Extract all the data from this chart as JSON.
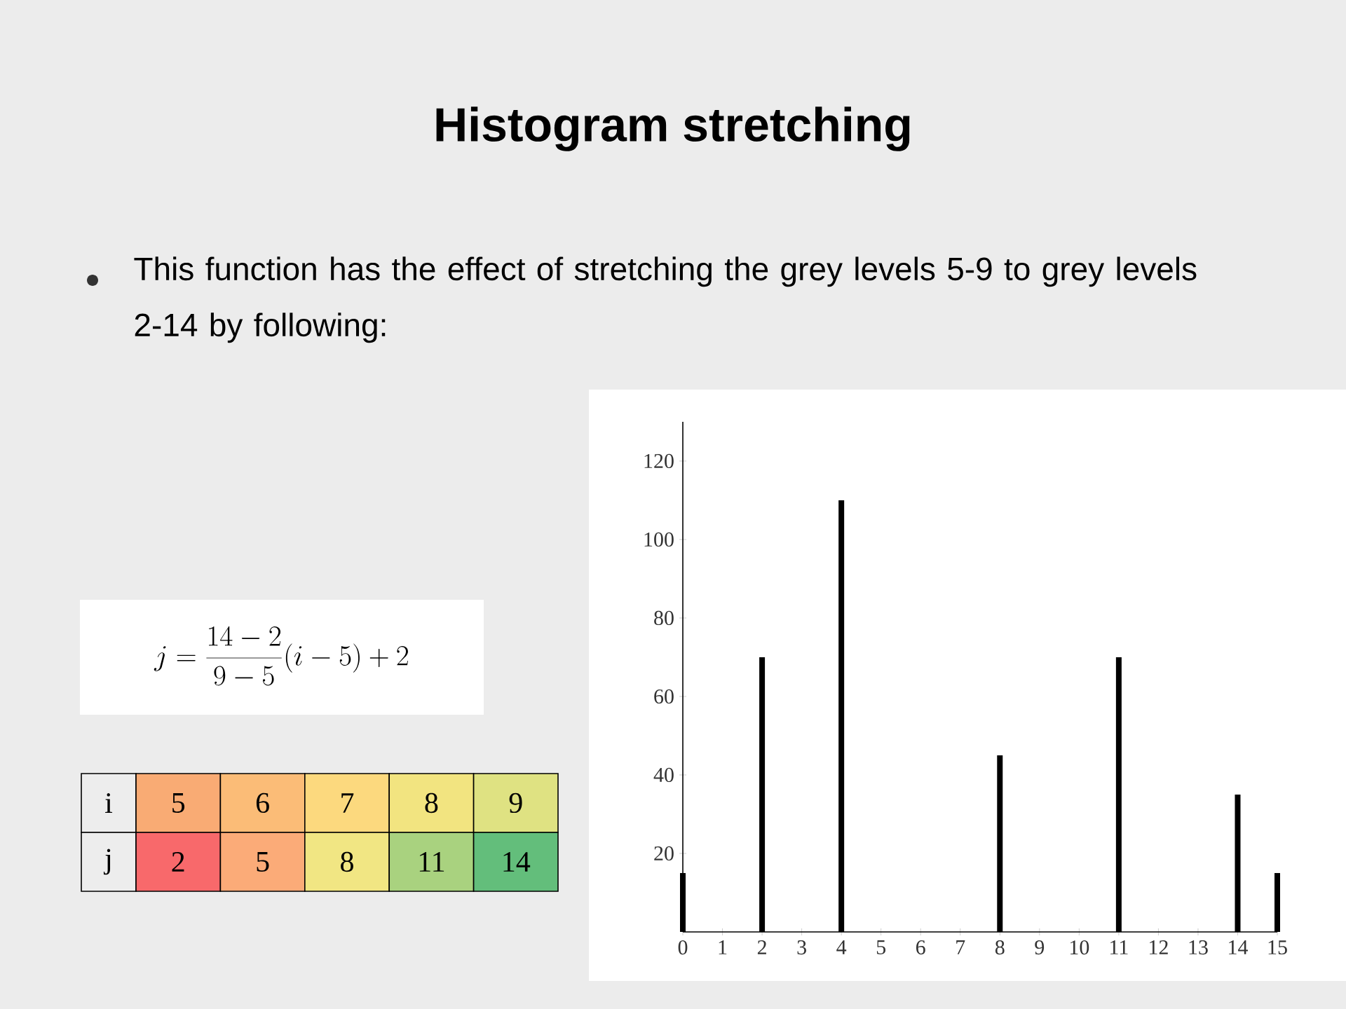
{
  "chart_data": {
    "type": "bar",
    "title": "Histogram stretching",
    "subtitle": "This function has the effect of stretching the grey levels 5-9 to grey levels 2-14 by following:",
    "categories": [
      "0",
      "1",
      "2",
      "3",
      "4",
      "5",
      "6",
      "7",
      "8",
      "9",
      "10",
      "11",
      "12",
      "13",
      "14",
      "15"
    ],
    "values": [
      15,
      0,
      70,
      0,
      110,
      0,
      0,
      0,
      45,
      0,
      0,
      70,
      0,
      0,
      35,
      15
    ],
    "color": "#000000",
    "ylim": [
      0,
      130
    ],
    "yticks": [
      20,
      40,
      60,
      80,
      100,
      120
    ],
    "annotations": [
      "j = \\frac{14-2}{9-5}(i-5)+2",
      "i",
      "5",
      "6",
      "7",
      "8",
      "9",
      "j",
      "2",
      "5",
      "8",
      "11",
      "14"
    ]
  }
}
